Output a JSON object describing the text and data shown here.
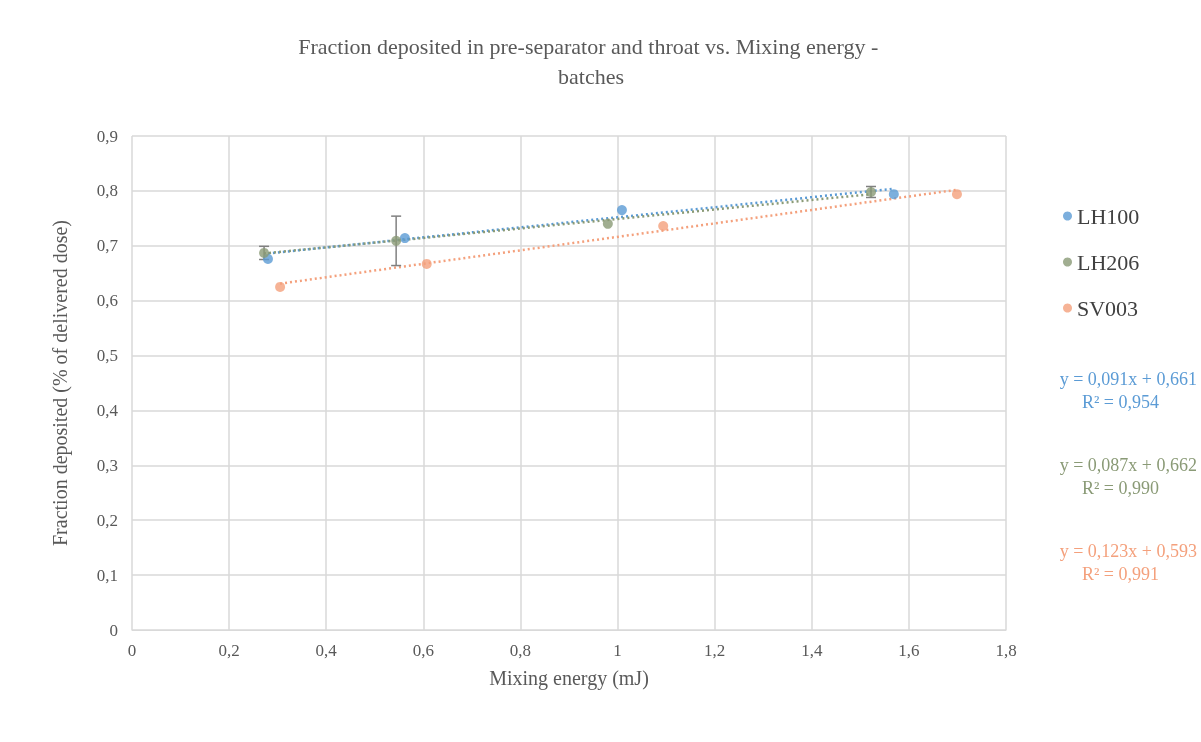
{
  "chart_data": {
    "type": "scatter",
    "title": "Fraction deposited in pre-separator and throat vs. Mixing energy - batches",
    "xlabel": "Mixing energy (mJ)",
    "ylabel": "Fraction deposited (% of delivered dose)",
    "xlim": [
      0,
      1.8
    ],
    "xticks": [
      0,
      {
        "value": 0.2,
        "label": "0,2"
      },
      {
        "value": 0.4,
        "label": "0,4"
      },
      {
        "value": 0.6,
        "label": "0,6"
      },
      {
        "value": 0.8,
        "label": "0,8"
      },
      1,
      {
        "value": 1.2,
        "label": "1,2"
      },
      {
        "value": 1.4,
        "label": "1,4"
      },
      {
        "value": 1.6,
        "label": "1,6"
      },
      {
        "value": 1.8,
        "label": "1,8"
      }
    ],
    "ylim": [
      0,
      0.9
    ],
    "yticks": [
      0,
      {
        "value": 0.1,
        "label": "0,1"
      },
      {
        "value": 0.2,
        "label": "0,2"
      },
      {
        "value": 0.3,
        "label": "0,3"
      },
      {
        "value": 0.4,
        "label": "0,4"
      },
      {
        "value": 0.5,
        "label": "0,5"
      },
      {
        "value": 0.6,
        "label": "0,6"
      },
      {
        "value": 0.7,
        "label": "0,7"
      },
      {
        "value": 0.8,
        "label": "0,8"
      },
      {
        "value": 0.9,
        "label": "0,9"
      }
    ],
    "grid": true,
    "legend": "right",
    "series": [
      {
        "name": "LH100",
        "marker": "circle",
        "color": "#5b9bd5",
        "x": [
          0.28,
          0.562,
          1.009,
          1.569
        ],
        "values": [
          0.676,
          0.714,
          0.765,
          0.794
        ]
      },
      {
        "name": "LH206",
        "marker": "circle",
        "color": "#8a9a76",
        "x": [
          0.272,
          0.544,
          0.98,
          1.522
        ],
        "values": [
          0.687,
          0.709,
          0.74,
          0.798
        ],
        "errors": [
          0.012,
          0.045,
          null,
          0.01
        ]
      },
      {
        "name": "SV003",
        "marker": "circle",
        "color": "#f4a07c",
        "x": [
          0.305,
          0.607,
          1.094,
          1.699
        ],
        "values": [
          0.625,
          0.667,
          0.736,
          0.794
        ]
      },
      {
        "type": "line",
        "marker": "none",
        "line_style": "dotted",
        "color": "#5b9bd5",
        "x": [
          0.28,
          1.569
        ],
        "values": [
          0.686,
          0.804
        ]
      },
      {
        "type": "line",
        "marker": "none",
        "line_style": "dotted",
        "color": "#8a9a76",
        "x": [
          0.272,
          1.522
        ],
        "values": [
          0.686,
          0.794
        ]
      },
      {
        "type": "line",
        "marker": "none",
        "line_style": "dotted",
        "color": "#f4a07c",
        "x": [
          0.305,
          1.699
        ],
        "values": [
          0.631,
          0.802
        ]
      }
    ],
    "annotations": [
      "y = 0,091x + 0,661",
      "R² = 0,954",
      "y = 0,087x + 0,662",
      "R² = 0,990",
      "y = 0,123x + 0,593",
      "R² = 0,991"
    ]
  }
}
